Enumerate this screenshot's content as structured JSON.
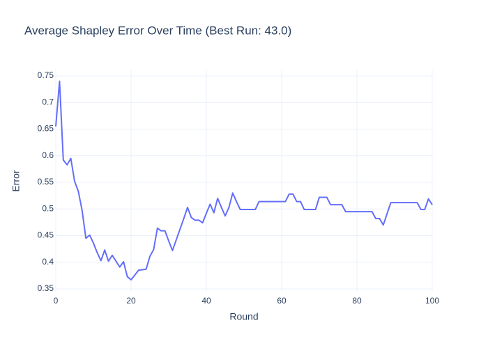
{
  "chart_data": {
    "type": "line",
    "title": "Average Shapley Error Over Time (Best Run: 43.0)",
    "x_label": "Round",
    "y_label": "Error",
    "color": "#636efa",
    "grid": true,
    "x": [
      0,
      1,
      2,
      3,
      4,
      5,
      6,
      7,
      8,
      9,
      10,
      11,
      12,
      13,
      14,
      15,
      16,
      17,
      18,
      19,
      20,
      21,
      22,
      23,
      24,
      25,
      26,
      27,
      28,
      29,
      30,
      31,
      32,
      33,
      34,
      35,
      36,
      37,
      38,
      39,
      40,
      41,
      42,
      43,
      44,
      45,
      46,
      47,
      48,
      49,
      50,
      51,
      52,
      53,
      54,
      55,
      56,
      57,
      58,
      59,
      60,
      61,
      62,
      63,
      64,
      65,
      66,
      67,
      68,
      69,
      70,
      71,
      72,
      73,
      74,
      75,
      76,
      77,
      78,
      79,
      80,
      81,
      82,
      83,
      84,
      85,
      86,
      87,
      88,
      89,
      90,
      91,
      92,
      93,
      94,
      95,
      96,
      97,
      98,
      99,
      100
    ],
    "values": [
      0.655,
      0.74,
      0.592,
      0.583,
      0.595,
      0.552,
      0.533,
      0.497,
      0.445,
      0.451,
      0.436,
      0.418,
      0.403,
      0.423,
      0.402,
      0.413,
      0.402,
      0.391,
      0.401,
      0.373,
      0.367,
      0.376,
      0.385,
      0.386,
      0.387,
      0.411,
      0.424,
      0.464,
      0.459,
      0.459,
      0.44,
      0.422,
      0.442,
      0.462,
      0.482,
      0.503,
      0.484,
      0.479,
      0.479,
      0.474,
      0.492,
      0.509,
      0.493,
      0.52,
      0.503,
      0.487,
      0.503,
      0.53,
      0.514,
      0.499,
      0.499,
      0.499,
      0.499,
      0.499,
      0.514,
      0.514,
      0.514,
      0.514,
      0.514,
      0.514,
      0.514,
      0.514,
      0.528,
      0.528,
      0.514,
      0.514,
      0.499,
      0.499,
      0.499,
      0.499,
      0.522,
      0.522,
      0.522,
      0.508,
      0.508,
      0.508,
      0.508,
      0.495,
      0.495,
      0.495,
      0.495,
      0.495,
      0.495,
      0.495,
      0.495,
      0.482,
      0.482,
      0.47,
      0.491,
      0.512,
      0.512,
      0.512,
      0.512,
      0.512,
      0.512,
      0.512,
      0.512,
      0.499,
      0.499,
      0.519,
      0.508
    ],
    "xlim": [
      0,
      100
    ],
    "xticks": [
      0,
      20,
      40,
      60,
      80,
      100
    ],
    "ylim": [
      0.3435,
      0.7618
    ],
    "yticks": [
      0.35,
      0.4,
      0.45,
      0.5,
      0.55,
      0.6,
      0.65,
      0.7,
      0.75
    ]
  }
}
